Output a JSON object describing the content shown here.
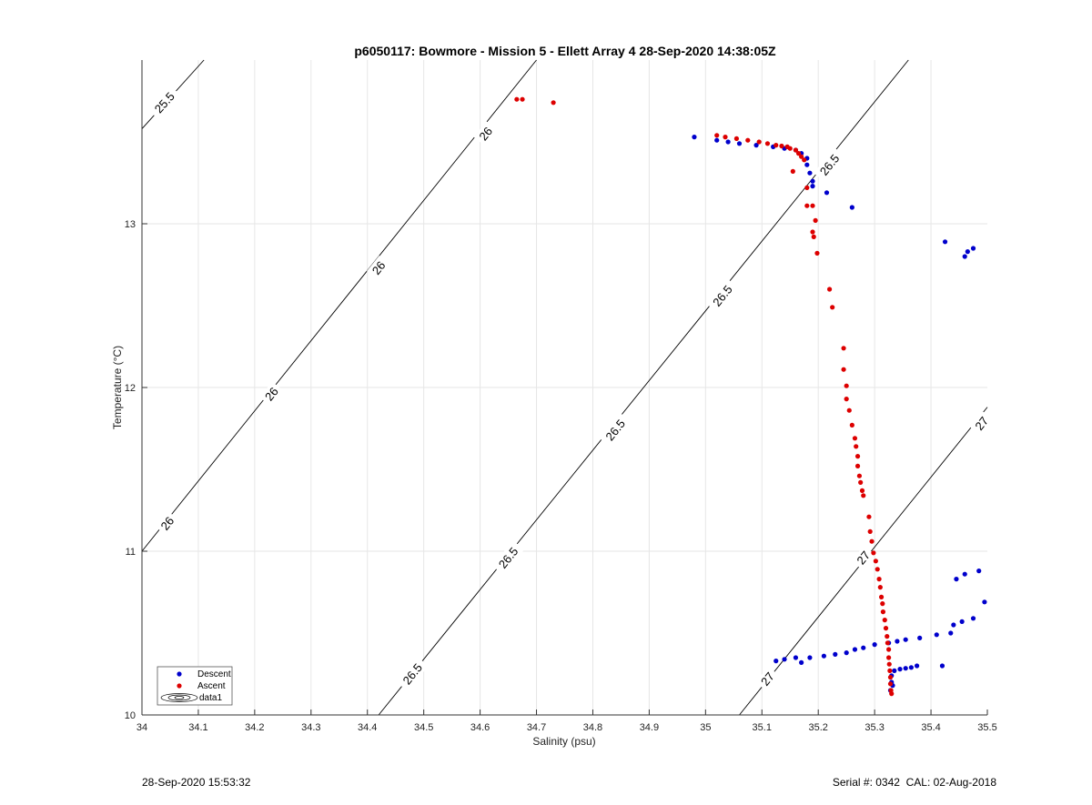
{
  "chart_data": {
    "type": "scatter",
    "title": "p6050117: Bowmore - Mission 5 - Ellett Array 4 28-Sep-2020 14:38:05Z",
    "xlabel": "Salinity (psu)",
    "ylabel": "Temperature (°C)",
    "xlim": [
      34,
      35.5
    ],
    "ylim": [
      10,
      14
    ],
    "x_ticks": [
      "34",
      "34.1",
      "34.2",
      "34.3",
      "34.4",
      "34.5",
      "34.6",
      "34.7",
      "34.8",
      "34.9",
      "35",
      "35.1",
      "35.2",
      "35.3",
      "35.4",
      "35.5"
    ],
    "y_ticks": [
      "10",
      "11",
      "12",
      "13"
    ],
    "grid": true,
    "legend_position": "bottom-left",
    "legend": [
      "Descent",
      "Ascent",
      "data1"
    ],
    "density_contours": [
      {
        "label": "25.5",
        "line": [
          [
            34,
            13.58
          ],
          [
            34.11,
            14.0
          ]
        ],
        "label_positions": [
          [
            34.04,
            13.74
          ]
        ]
      },
      {
        "label": "26",
        "line": [
          [
            34.0,
            11.0
          ],
          [
            34.7,
            14.0
          ]
        ],
        "label_positions": [
          [
            34.045,
            11.17
          ],
          [
            34.23,
            11.96
          ],
          [
            34.42,
            12.73
          ],
          [
            34.61,
            13.55
          ]
        ]
      },
      {
        "label": "26.5",
        "line": [
          [
            34.42,
            10.0
          ],
          [
            35.36,
            14.0
          ]
        ],
        "label_positions": [
          [
            34.48,
            10.25
          ],
          [
            34.65,
            10.96
          ],
          [
            34.84,
            11.74
          ],
          [
            35.03,
            12.56
          ],
          [
            35.22,
            13.36
          ]
        ]
      },
      {
        "label": "27",
        "line": [
          [
            35.06,
            10.0
          ],
          [
            35.5,
            11.88
          ]
        ],
        "label_positions": [
          [
            35.11,
            10.22
          ],
          [
            35.28,
            10.96
          ],
          [
            35.49,
            11.78
          ]
        ]
      }
    ],
    "series": [
      {
        "name": "Descent",
        "color": "#0000cc",
        "points": [
          [
            34.98,
            13.53
          ],
          [
            35.02,
            13.51
          ],
          [
            35.04,
            13.5
          ],
          [
            35.06,
            13.49
          ],
          [
            35.09,
            13.48
          ],
          [
            35.12,
            13.47
          ],
          [
            35.14,
            13.46
          ],
          [
            35.16,
            13.45
          ],
          [
            35.17,
            13.43
          ],
          [
            35.18,
            13.4
          ],
          [
            35.18,
            13.36
          ],
          [
            35.185,
            13.31
          ],
          [
            35.19,
            13.26
          ],
          [
            35.19,
            13.23
          ],
          [
            35.215,
            13.19
          ],
          [
            35.26,
            13.1
          ],
          [
            35.425,
            12.89
          ],
          [
            35.46,
            12.8
          ],
          [
            35.465,
            12.83
          ],
          [
            35.475,
            12.85
          ],
          [
            35.125,
            10.33
          ],
          [
            35.14,
            10.34
          ],
          [
            35.16,
            10.35
          ],
          [
            35.17,
            10.32
          ],
          [
            35.185,
            10.35
          ],
          [
            35.21,
            10.36
          ],
          [
            35.23,
            10.37
          ],
          [
            35.25,
            10.38
          ],
          [
            35.265,
            10.4
          ],
          [
            35.28,
            10.41
          ],
          [
            35.3,
            10.43
          ],
          [
            35.325,
            10.44
          ],
          [
            35.34,
            10.45
          ],
          [
            35.355,
            10.46
          ],
          [
            35.38,
            10.47
          ],
          [
            35.41,
            10.49
          ],
          [
            35.435,
            10.5
          ],
          [
            35.44,
            10.55
          ],
          [
            35.455,
            10.57
          ],
          [
            35.475,
            10.59
          ],
          [
            35.495,
            10.69
          ],
          [
            35.445,
            10.83
          ],
          [
            35.46,
            10.86
          ],
          [
            35.485,
            10.88
          ],
          [
            35.33,
            10.24
          ],
          [
            35.335,
            10.27
          ],
          [
            35.345,
            10.28
          ],
          [
            35.355,
            10.285
          ],
          [
            35.365,
            10.29
          ],
          [
            35.375,
            10.3
          ],
          [
            35.42,
            10.3
          ],
          [
            35.33,
            10.2
          ],
          [
            35.328,
            10.15
          ],
          [
            35.332,
            10.18
          ]
        ]
      },
      {
        "name": "Ascent",
        "color": "#dd0000",
        "points": [
          [
            34.665,
            13.76
          ],
          [
            34.675,
            13.76
          ],
          [
            34.73,
            13.74
          ],
          [
            35.02,
            13.54
          ],
          [
            35.035,
            13.53
          ],
          [
            35.055,
            13.52
          ],
          [
            35.075,
            13.51
          ],
          [
            35.095,
            13.5
          ],
          [
            35.11,
            13.49
          ],
          [
            35.125,
            13.48
          ],
          [
            35.135,
            13.475
          ],
          [
            35.145,
            13.47
          ],
          [
            35.15,
            13.46
          ],
          [
            35.16,
            13.45
          ],
          [
            35.165,
            13.43
          ],
          [
            35.17,
            13.41
          ],
          [
            35.175,
            13.39
          ],
          [
            35.155,
            13.32
          ],
          [
            35.18,
            13.22
          ],
          [
            35.18,
            13.11
          ],
          [
            35.19,
            13.11
          ],
          [
            35.195,
            13.02
          ],
          [
            35.19,
            12.95
          ],
          [
            35.192,
            12.92
          ],
          [
            35.198,
            12.82
          ],
          [
            35.22,
            12.6
          ],
          [
            35.225,
            12.49
          ],
          [
            35.245,
            12.24
          ],
          [
            35.245,
            12.11
          ],
          [
            35.25,
            12.01
          ],
          [
            35.25,
            11.93
          ],
          [
            35.255,
            11.86
          ],
          [
            35.26,
            11.77
          ],
          [
            35.265,
            11.69
          ],
          [
            35.267,
            11.64
          ],
          [
            35.27,
            11.58
          ],
          [
            35.27,
            11.52
          ],
          [
            35.273,
            11.46
          ],
          [
            35.275,
            11.42
          ],
          [
            35.278,
            11.37
          ],
          [
            35.28,
            11.34
          ],
          [
            35.29,
            11.21
          ],
          [
            35.292,
            11.12
          ],
          [
            35.295,
            11.06
          ],
          [
            35.298,
            10.99
          ],
          [
            35.302,
            10.94
          ],
          [
            35.305,
            10.89
          ],
          [
            35.308,
            10.83
          ],
          [
            35.31,
            10.78
          ],
          [
            35.312,
            10.72
          ],
          [
            35.314,
            10.68
          ],
          [
            35.315,
            10.63
          ],
          [
            35.318,
            10.58
          ],
          [
            35.32,
            10.53
          ],
          [
            35.322,
            10.48
          ],
          [
            35.323,
            10.44
          ],
          [
            35.325,
            10.4
          ],
          [
            35.325,
            10.35
          ],
          [
            35.326,
            10.31
          ],
          [
            35.327,
            10.27
          ],
          [
            35.328,
            10.23
          ],
          [
            35.328,
            10.19
          ],
          [
            35.329,
            10.15
          ],
          [
            35.33,
            10.13
          ]
        ]
      }
    ]
  },
  "footer": {
    "left": "28-Sep-2020 15:53:32",
    "right": "Serial #: 0342  CAL: 02-Aug-2018"
  }
}
